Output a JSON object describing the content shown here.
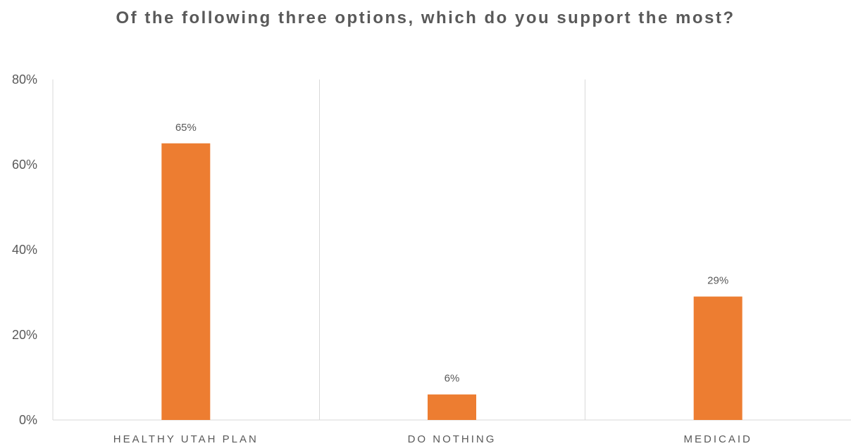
{
  "chart_data": {
    "type": "bar",
    "title": "Of the following three options, which do you support the most?",
    "categories": [
      "HEALTHY UTAH PLAN",
      "DO NOTHING",
      "MEDICAID"
    ],
    "values": [
      65,
      6,
      29
    ],
    "data_labels": [
      "65%",
      "6%",
      "29%"
    ],
    "ylim": [
      0,
      80
    ],
    "y_ticks": [
      "0%",
      "20%",
      "40%",
      "60%",
      "80%"
    ],
    "xlabel": "",
    "ylabel": "",
    "grid": "vertical category separators",
    "legend": "none",
    "bar_color": "#ED7D31"
  }
}
